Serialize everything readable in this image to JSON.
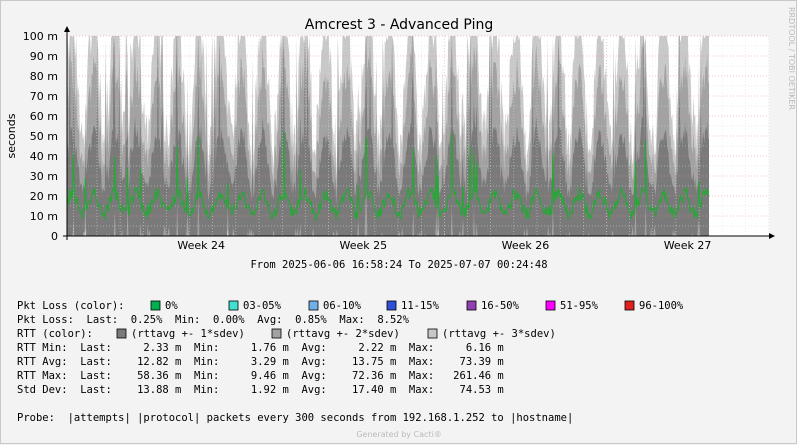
{
  "chart_data": {
    "type": "area",
    "title": "Amcrest 3 - Advanced Ping",
    "ylabel": "seconds",
    "xlabel": "",
    "ylim": [
      0,
      0.1
    ],
    "y_ticks": [
      "0",
      "10 m",
      "20 m",
      "30 m",
      "40 m",
      "50 m",
      "60 m",
      "70 m",
      "80 m",
      "90 m",
      "100 m"
    ],
    "x_ticks": [
      "Week 24",
      "Week 25",
      "Week 26",
      "Week 27"
    ],
    "x_range": [
      "2025-06-06 16:58:24",
      "2025-07-07 00:24:48"
    ],
    "date_range_text": "From 2025-06-06 16:58:24 To 2025-07-07 00:24:48",
    "side_label": "RRDTOOL / TOBI OETIKER",
    "grid": true,
    "series": [
      {
        "name": "RTT Avg",
        "last": 0.01282,
        "min": 0.00329,
        "avg": 0.01375,
        "max": 0.07339
      },
      {
        "name": "RTT Min",
        "last": 0.00233,
        "min": 0.00176,
        "avg": 0.00222,
        "max": 0.00616
      },
      {
        "name": "RTT Max",
        "last": 0.05836,
        "min": 0.00946,
        "avg": 0.07236,
        "max": 0.26146
      },
      {
        "name": "Std Dev",
        "last": 0.01388,
        "min": 0.00192,
        "avg": 0.0174,
        "max": 0.07453
      }
    ]
  },
  "colors": {
    "rtt_avg_line": "#22aa33",
    "sdev1": "#7a7a7a",
    "sdev2": "#a2a2a2",
    "sdev3": "#c8c8c8",
    "grid_major": "#e88888",
    "background": "#ffffff"
  },
  "legend": {
    "pkt_loss_color_label": "Pkt Loss (color):",
    "pkt_loss_items": [
      {
        "label": "0%",
        "color": "#00b050"
      },
      {
        "label": "03-05%",
        "color": "#40e0d0"
      },
      {
        "label": "06-10%",
        "color": "#70b0e8"
      },
      {
        "label": "11-15%",
        "color": "#3050d8"
      },
      {
        "label": "16-50%",
        "color": "#9040b0"
      },
      {
        "label": "51-95%",
        "color": "#ff00ff"
      },
      {
        "label": "96-100%",
        "color": "#e02020"
      }
    ],
    "pkt_loss_stats": "Pkt Loss:  Last:  0.25%  Min:  0.00%  Avg:  0.85%  Max:  8.52%",
    "rtt_color_label": "RTT (color):",
    "rtt_items": [
      {
        "label": "(rttavg +- 1*sdev)",
        "color": "#7a7a7a"
      },
      {
        "label": "(rttavg +- 2*sdev)",
        "color": "#a2a2a2"
      },
      {
        "label": "(rttavg +- 3*sdev)",
        "color": "#c8c8c8"
      }
    ],
    "rtt_min": "RTT Min:  Last:     2.33 m  Min:     1.76 m  Avg:     2.22 m  Max:     6.16 m",
    "rtt_avg": "RTT Avg:  Last:    12.82 m  Min:     3.29 m  Avg:    13.75 m  Max:    73.39 m",
    "rtt_max": "RTT Max:  Last:    58.36 m  Min:     9.46 m  Avg:    72.36 m  Max:   261.46 m",
    "std_dev": "Std Dev:  Last:    13.88 m  Min:     1.92 m  Avg:    17.40 m  Max:    74.53 m",
    "probe": "Probe:  |attempts| |protocol| packets every 300 seconds from 192.168.1.252 to |hostname|"
  },
  "footer": "Generated by Cacti®"
}
